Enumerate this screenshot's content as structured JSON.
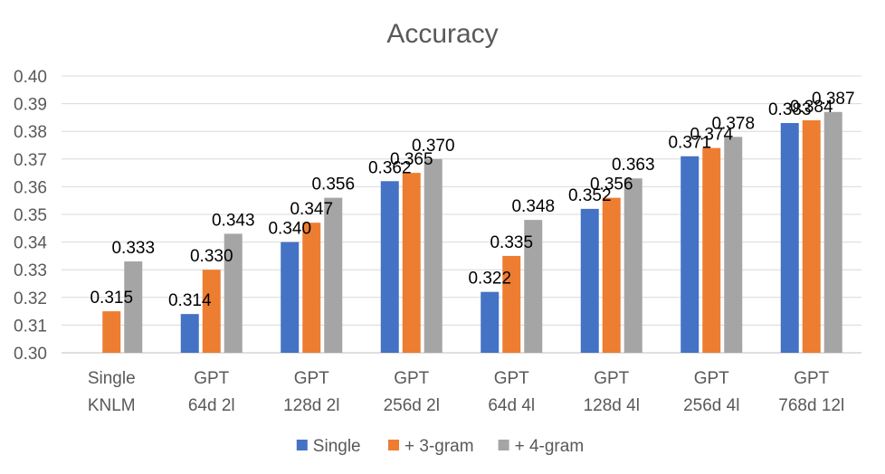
{
  "chart_data": {
    "type": "bar",
    "title": "Accuracy",
    "xlabel": "",
    "ylabel": "",
    "ylim": [
      0.3,
      0.4
    ],
    "yticks": [
      "0.30",
      "0.31",
      "0.32",
      "0.33",
      "0.34",
      "0.35",
      "0.36",
      "0.37",
      "0.38",
      "0.39",
      "0.40"
    ],
    "grid": true,
    "legend_position": "bottom",
    "categories": [
      [
        "Single",
        "KNLM"
      ],
      [
        "GPT",
        "64d 2l"
      ],
      [
        "GPT",
        "128d 2l"
      ],
      [
        "GPT",
        "256d 2l"
      ],
      [
        "GPT",
        "64d 4l"
      ],
      [
        "GPT",
        "128d 4l"
      ],
      [
        "GPT",
        "256d 4l"
      ],
      [
        "GPT",
        "768d 12l"
      ]
    ],
    "series": [
      {
        "name": "Single",
        "color": "#4472C4",
        "values": [
          null,
          0.314,
          0.34,
          0.362,
          0.322,
          0.352,
          0.371,
          0.383
        ],
        "labels": [
          "",
          "0.314",
          "0.340",
          "0.362",
          "0.322",
          "0.352",
          "0.371",
          "0.383"
        ]
      },
      {
        "name": "+ 3-gram",
        "color": "#ED7D31",
        "values": [
          0.315,
          0.33,
          0.347,
          0.365,
          0.335,
          0.356,
          0.374,
          0.384
        ],
        "labels": [
          "0.315",
          "0.330",
          "0.347",
          "0.365",
          "0.335",
          "0.356",
          "0.374",
          "0.384"
        ]
      },
      {
        "name": "+ 4-gram",
        "color": "#A5A5A5",
        "values": [
          0.333,
          0.343,
          0.356,
          0.37,
          0.348,
          0.363,
          0.378,
          0.387
        ],
        "labels": [
          "0.333",
          "0.343",
          "0.356",
          "0.370",
          "0.348",
          "0.363",
          "0.378",
          "0.387"
        ]
      }
    ]
  }
}
